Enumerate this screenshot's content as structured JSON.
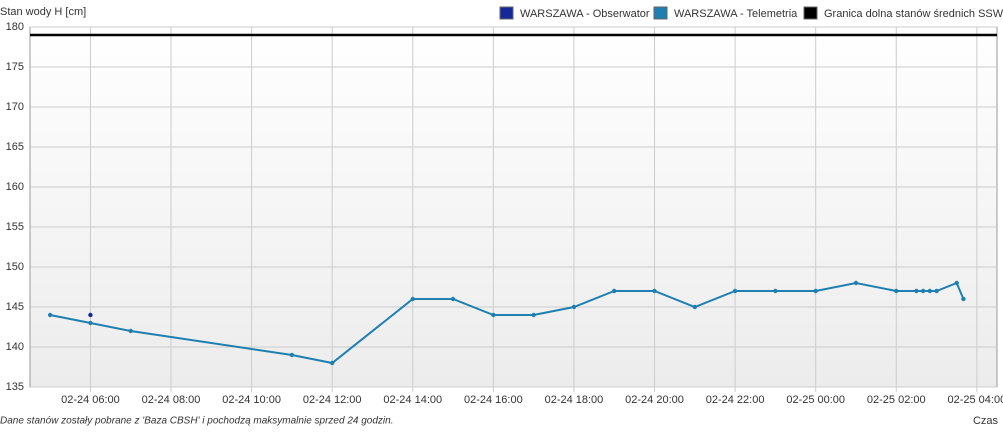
{
  "chart_data": {
    "type": "line",
    "y_label": "Stan wody H [cm]",
    "x_label": "Czas",
    "note": "Dane stanów zostały pobrane z 'Baza CBSH' i pochodzą maksymalnie sprzed 24 godzin.",
    "xlim": [
      "02-24 04:30",
      "02-25 04:30"
    ],
    "xticks": [
      "02-24 06:00",
      "02-24 08:00",
      "02-24 10:00",
      "02-24 12:00",
      "02-24 14:00",
      "02-24 16:00",
      "02-24 18:00",
      "02-24 20:00",
      "02-24 22:00",
      "02-25 00:00",
      "02-25 02:00",
      "02-25 04:00"
    ],
    "ylim": [
      135,
      180
    ],
    "yticks": [
      135,
      140,
      145,
      150,
      155,
      160,
      165,
      170,
      175,
      180
    ],
    "grid": true,
    "series": [
      {
        "name": "WARSZAWA - Obserwator",
        "color": "#14289a",
        "x": [
          "02-24 06:00"
        ],
        "values": [
          144
        ]
      },
      {
        "name": "WARSZAWA - Telemetria",
        "color": "#1f7fb0",
        "x": [
          "02-24 05:00",
          "02-24 06:00",
          "02-24 07:00",
          "02-24 11:00",
          "02-24 12:00",
          "02-24 14:00",
          "02-24 15:00",
          "02-24 16:00",
          "02-24 17:00",
          "02-24 18:00",
          "02-24 19:00",
          "02-24 20:00",
          "02-24 21:00",
          "02-24 22:00",
          "02-24 23:00",
          "02-25 00:00",
          "02-25 01:00",
          "02-25 02:00",
          "02-25 02:30",
          "02-25 02:40",
          "02-25 02:50",
          "02-25 03:00",
          "02-25 03:30",
          "02-25 03:40"
        ],
        "values": [
          144,
          143,
          142,
          139,
          138,
          146,
          146,
          144,
          144,
          145,
          147,
          147,
          145,
          147,
          147,
          147,
          148,
          147,
          147,
          147,
          147,
          147,
          148,
          146
        ]
      },
      {
        "name": "Granica dolna stanów średnich SSW",
        "color": "#000000",
        "x": [
          "02-24 04:30",
          "02-25 04:30"
        ],
        "values": [
          179,
          179
        ]
      }
    ]
  }
}
